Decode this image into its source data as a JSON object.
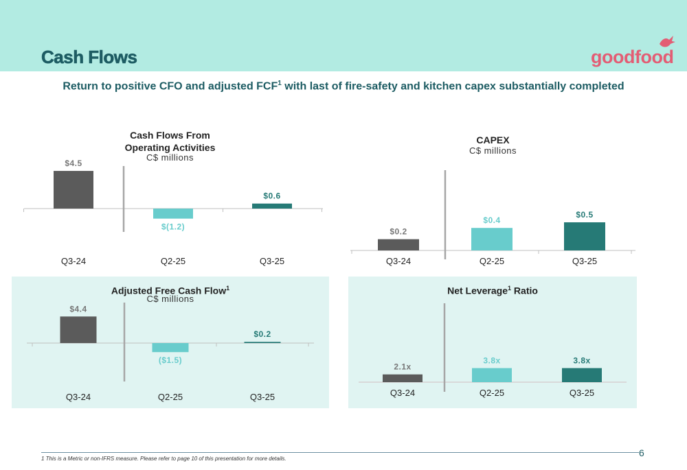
{
  "header": {
    "title": "Cash Flows"
  },
  "logo": {
    "text": "goodfood"
  },
  "subtitle": {
    "text": "Return to positive CFO and adjusted FCF",
    "sup": "1",
    "text2": " with last of fire-safety and kitchen capex substantially completed"
  },
  "colors": {
    "dark": "#5b5b5b",
    "light": "#68cccc",
    "teal": "#267a76",
    "title": "#1d5c63"
  },
  "chart_data": [
    {
      "type": "bar",
      "title_line1": "Cash Flows From",
      "title_line2": "Operating Activities",
      "unit": "C$ millions",
      "categories": [
        "Q3-24",
        "Q2-25",
        "Q3-25"
      ],
      "values": [
        4.5,
        -1.2,
        0.6
      ],
      "labels": [
        "$4.5",
        "$(1.2)",
        "$0.6"
      ]
    },
    {
      "type": "bar",
      "title_line1": "CAPEX",
      "unit": "C$ millions",
      "categories": [
        "Q3-24",
        "Q2-25",
        "Q3-25"
      ],
      "values": [
        0.2,
        0.4,
        0.5
      ],
      "labels": [
        "$0.2",
        "$0.4",
        "$0.5"
      ]
    },
    {
      "type": "bar",
      "title_line1": "Adjusted Free Cash Flow",
      "title_sup": "1",
      "unit": "C$ millions",
      "categories": [
        "Q3-24",
        "Q2-25",
        "Q3-25"
      ],
      "values": [
        4.4,
        -1.5,
        0.2
      ],
      "labels": [
        "$4.4",
        "($1.5)",
        "$0.2"
      ]
    },
    {
      "type": "bar",
      "title_line1": "Net Leverage",
      "title_sup": "1",
      "title_line1_suffix": " Ratio",
      "categories": [
        "Q3-24",
        "Q2-25",
        "Q3-25"
      ],
      "values": [
        2.1,
        3.8,
        3.8
      ],
      "labels": [
        "2.1x",
        "3.8x",
        "3.8x"
      ]
    }
  ],
  "footer": {
    "page_number": "6",
    "footnote": "1   This is a Metric or non-IFRS measure. Please refer to page 10 of this presentation for more details."
  }
}
